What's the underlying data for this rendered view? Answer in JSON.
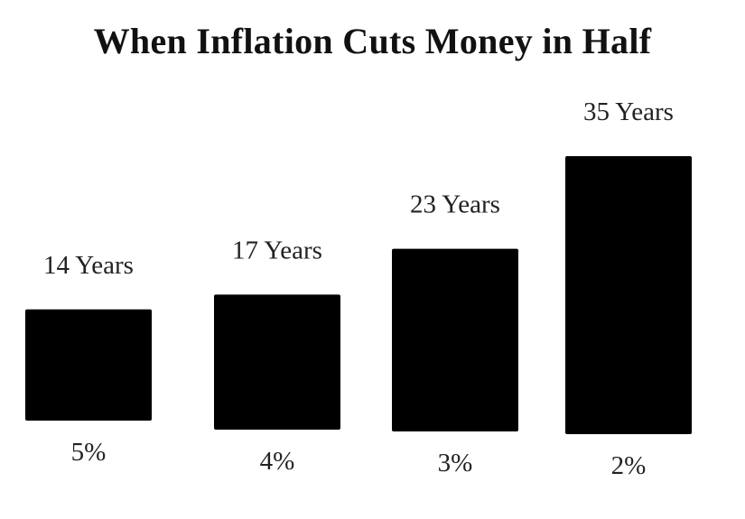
{
  "chart_data": {
    "type": "bar",
    "title": "When Inflation Cuts Money in Half",
    "xlabel": "",
    "ylabel": "",
    "categories": [
      "5%",
      "4%",
      "3%",
      "2%"
    ],
    "values": [
      14,
      17,
      23,
      35
    ],
    "data_labels": [
      "14 Years",
      "17 Years",
      "23 Years",
      "35 Years"
    ],
    "bar_color": "#000000",
    "grid": false,
    "legend": "none"
  }
}
